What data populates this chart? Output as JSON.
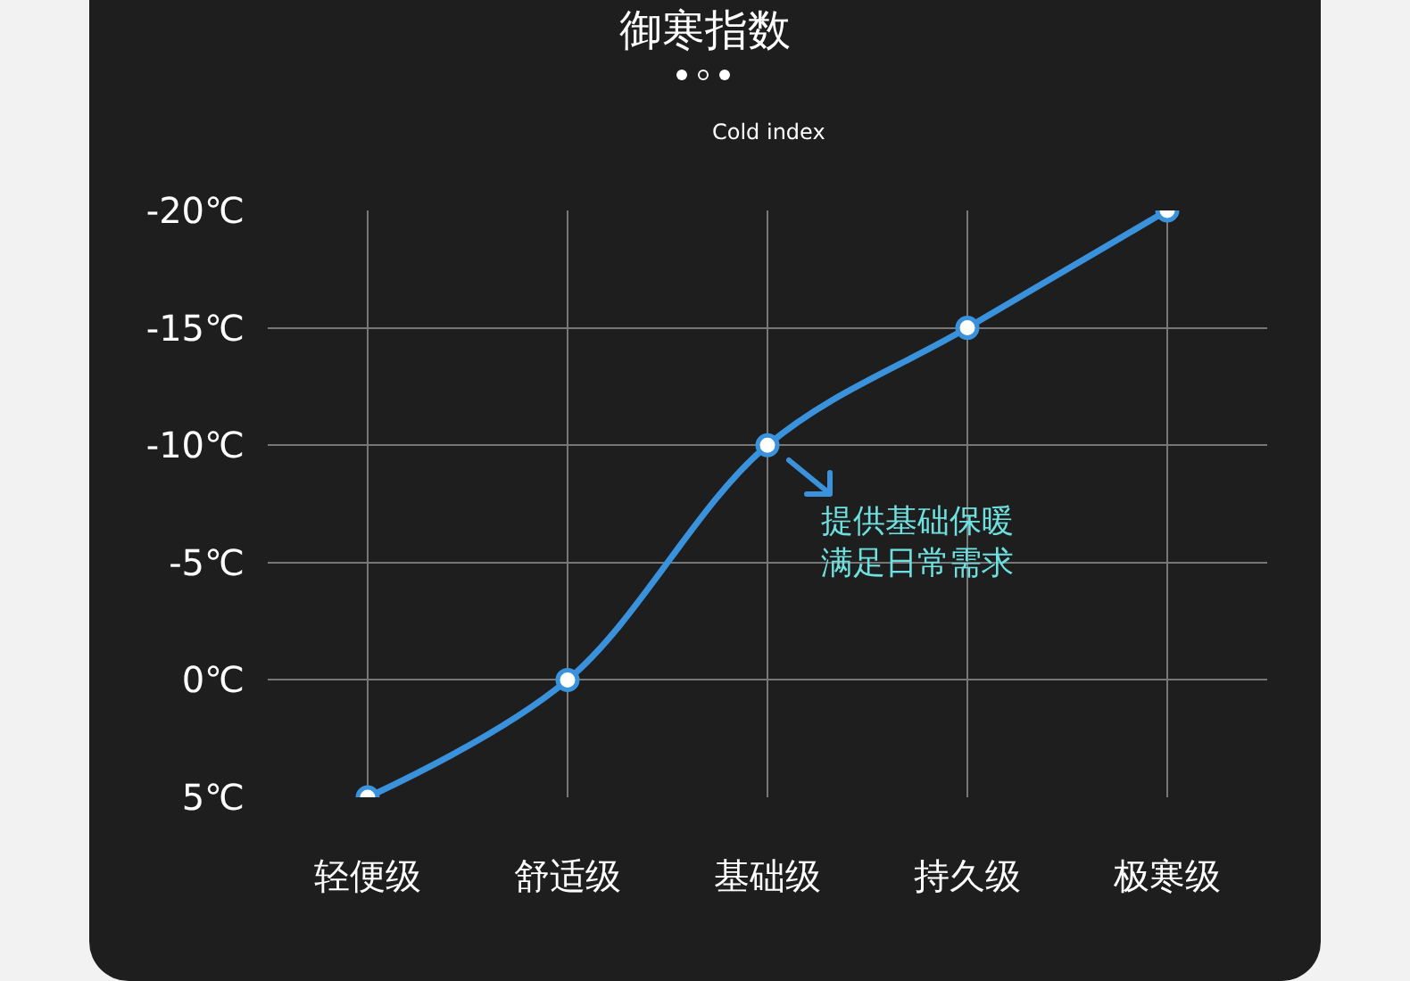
{
  "chart_data": {
    "type": "line",
    "title": "御寒指数",
    "subtitle": "Cold index",
    "categories": [
      "轻便级",
      "舒适级",
      "基础级",
      "持久级",
      "极寒级"
    ],
    "series": [
      {
        "color": "#3a92dc",
        "values": [
          5,
          0,
          -10,
          -15,
          -20
        ]
      }
    ],
    "ylim": [
      5,
      -20
    ],
    "yticks": [
      {
        "value": -20,
        "label": "-20℃"
      },
      {
        "value": -15,
        "label": "-15℃"
      },
      {
        "value": -10,
        "label": "-10℃"
      },
      {
        "value": -5,
        "label": "-5℃"
      },
      {
        "value": 0,
        "label": "0℃"
      },
      {
        "value": 5,
        "label": "5℃"
      }
    ],
    "grid": true,
    "legend": false,
    "marker": "circle",
    "line_style": "solid",
    "annotations": [
      {
        "text": "提供基础保暖满足日常需求",
        "x": "基础级",
        "y": -10
      }
    ]
  }
}
